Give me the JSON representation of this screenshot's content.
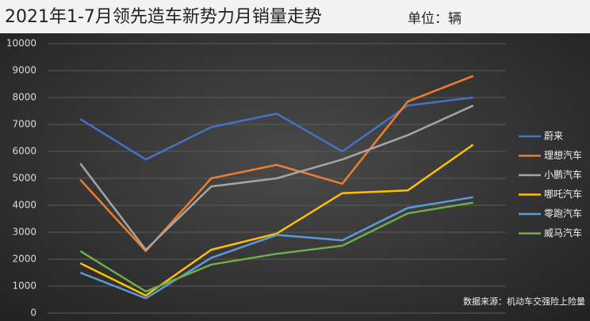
{
  "chart_data": {
    "type": "line",
    "title": "2021年1-7月领先造车新势力月销量走势",
    "subtitle": "单位：辆",
    "source": "数据来源：机动车交强险上险量",
    "categories": [
      null,
      null,
      null,
      null,
      null,
      null,
      null
    ],
    "ylim": [
      0,
      10000
    ],
    "yticks": [
      0,
      1000,
      2000,
      3000,
      4000,
      5000,
      6000,
      7000,
      8000,
      9000,
      10000
    ],
    "grid": true,
    "legend": "right",
    "series": [
      {
        "name": "蔚来",
        "color": "#4472c4",
        "values": [
          7200,
          5700,
          6900,
          7400,
          6000,
          7700,
          8000
        ]
      },
      {
        "name": "理想汽车",
        "color": "#ed7d31",
        "values": [
          4950,
          2300,
          5000,
          5500,
          4800,
          7850,
          8800
        ]
      },
      {
        "name": "小鹏汽车",
        "color": "#a5a5a5",
        "values": [
          5550,
          2350,
          4700,
          5000,
          5700,
          6600,
          7700
        ]
      },
      {
        "name": "哪吒汽车",
        "color": "#ffc000",
        "values": [
          1850,
          650,
          2350,
          2950,
          4450,
          4550,
          6250
        ]
      },
      {
        "name": "零跑汽车",
        "color": "#5b9bd5",
        "values": [
          1500,
          550,
          2050,
          2900,
          2700,
          3900,
          4300
        ]
      },
      {
        "name": "威马汽车",
        "color": "#70ad47",
        "values": [
          2300,
          800,
          1800,
          2200,
          2500,
          3700,
          4100
        ]
      }
    ]
  }
}
